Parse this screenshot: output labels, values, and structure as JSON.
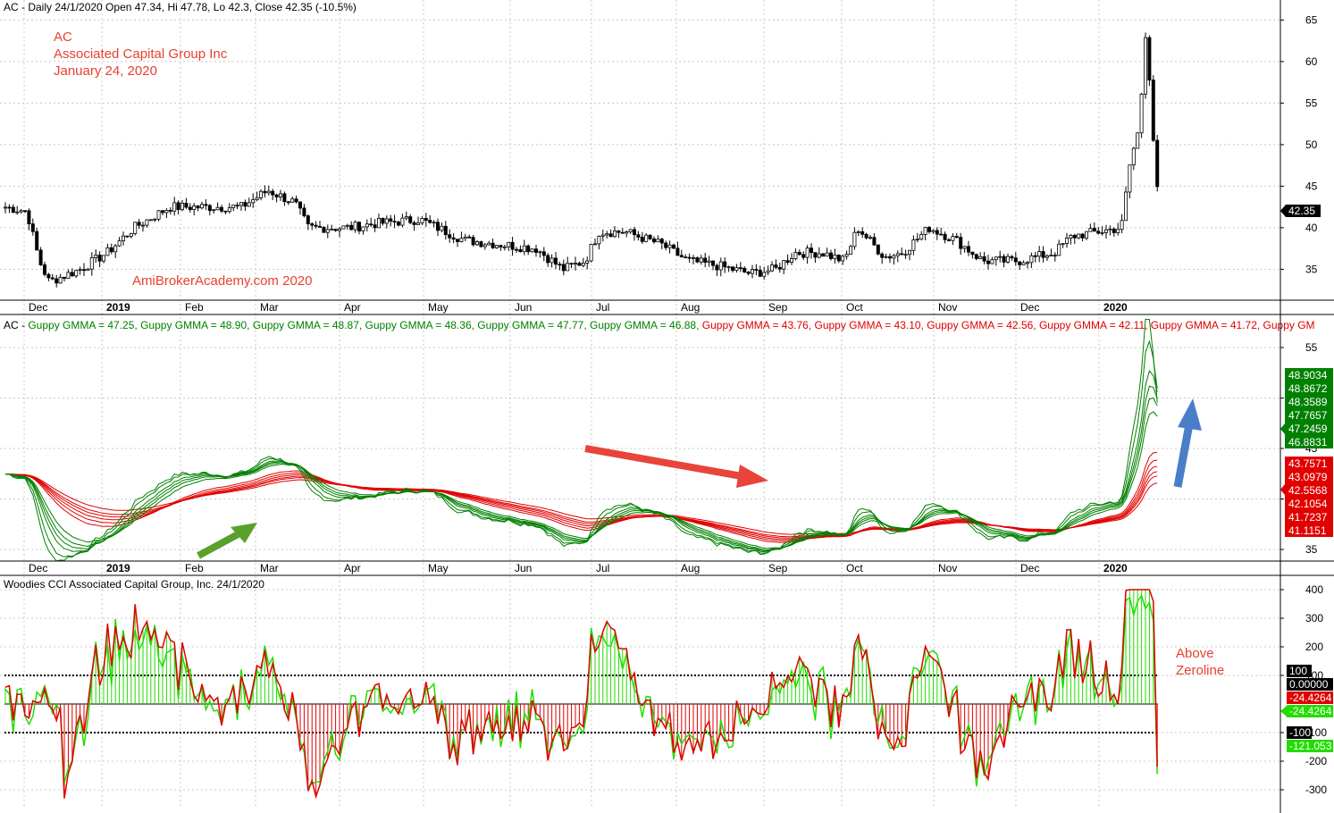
{
  "colors": {
    "background": "#ffffff",
    "grid": "#c8c8c8",
    "candle": "#000000",
    "gmma_short": "#008000",
    "gmma_long": "#e00000",
    "annot_red": "#e8402f",
    "cci_green": "#22dd00",
    "cci_red": "#e00000",
    "arrow_green": "#5aa02c",
    "arrow_red": "#e8443a",
    "arrow_blue": "#4a7ec8"
  },
  "price_panel": {
    "header": "AC - Daily 24/1/2020 Open 47.34, Hi 47.78, Lo 42.3, Close 42.35 (-10.5%)",
    "title_lines": [
      "AC",
      "Associated Capital Group Inc",
      "January 24, 2020"
    ],
    "watermark": "AmiBrokerAcademy.com   2020",
    "last_label": "42.35",
    "y_ticks": [
      "65",
      "60",
      "55",
      "50",
      "45",
      "40",
      "35"
    ]
  },
  "gmma_panel": {
    "header_prefix": "AC - ",
    "header_items": [
      {
        "text": "Guppy GMMA = 47.25,",
        "color": "green"
      },
      {
        "text": "Guppy GMMA = 48.90,",
        "color": "green"
      },
      {
        "text": "Guppy GMMA = 48.87,",
        "color": "green"
      },
      {
        "text": "Guppy GMMA = 48.36,",
        "color": "green"
      },
      {
        "text": "Guppy GMMA = 47.77,",
        "color": "green"
      },
      {
        "text": "Guppy GMMA = 46.88,",
        "color": "green"
      },
      {
        "text": "Guppy GMMA = 43.76,",
        "color": "red"
      },
      {
        "text": "Guppy GMMA = 43.10,",
        "color": "red"
      },
      {
        "text": "Guppy GMMA = 42.56,",
        "color": "red"
      },
      {
        "text": "Guppy GMMA = 42.11,",
        "color": "red"
      },
      {
        "text": "Guppy GMMA = 41.72,",
        "color": "red"
      },
      {
        "text": "Guppy GM",
        "color": "red"
      }
    ],
    "y_ticks": [
      "55",
      "50",
      "45",
      "40",
      "35"
    ],
    "green_labels": [
      "48.9034",
      "48.8672",
      "48.3589",
      "47.7657",
      "47.2459",
      "46.8831"
    ],
    "red_labels": [
      "43.7571",
      "43.0979",
      "42.5568",
      "42.1054",
      "41.7237",
      "41.1151"
    ]
  },
  "cci_panel": {
    "header": "Woodies CCI  Associated Capital Group, Inc. 24/1/2020",
    "annotation": [
      "Above",
      "Zeroline"
    ],
    "y_ticks": [
      "400",
      "300",
      "200",
      "100",
      "-100",
      "-200",
      "-300"
    ],
    "labels": {
      "upper": "100",
      "zero": "0.00000",
      "value_red": "-24.4264",
      "value_green": "-24.4264",
      "lower": "-100",
      "turbo": "-121.053"
    }
  },
  "x_axis": {
    "months": [
      "Dec",
      "2019",
      "Feb",
      "Mar",
      "Apr",
      "May",
      "Jun",
      "Jul",
      "Aug",
      "Sep",
      "Oct",
      "Nov",
      "Dec",
      "2020"
    ]
  },
  "chart_data": [
    {
      "type": "candlestick",
      "title": "AC - Daily 24/1/2020 Open 47.34, Hi 47.78, Lo 42.3, Close 42.35 (-10.5%)",
      "x_range": [
        "Nov 2018",
        "Jan 24, 2020"
      ],
      "ylim": [
        31,
        67
      ],
      "last": {
        "open": 47.34,
        "high": 47.78,
        "low": 42.3,
        "close": 42.35
      },
      "close_path_months": [
        "Nov",
        "Dec",
        "2019",
        "Feb",
        "Mar",
        "Apr",
        "May",
        "Jun",
        "Jul",
        "Aug",
        "Sep",
        "Oct",
        "Nov",
        "Dec",
        "2020"
      ],
      "close_approx": [
        42.5,
        34,
        37.5,
        42.5,
        44.5,
        40,
        41,
        37,
        39.5,
        36.5,
        35,
        37,
        38.5,
        36,
        38.5
      ]
    },
    {
      "type": "line",
      "title": "Guppy GMMA",
      "ylim": [
        32,
        58
      ],
      "short_values": [
        48.9034,
        48.8672,
        48.3589,
        47.7657,
        47.2459,
        46.8831
      ],
      "long_values": [
        43.7571,
        43.0979,
        42.5568,
        42.1054,
        41.7237,
        41.1151
      ]
    },
    {
      "type": "line",
      "title": "Woodies CCI",
      "ylim": [
        -370,
        420
      ],
      "levels": [
        100,
        0,
        -100
      ],
      "last_cci": -24.4264,
      "last_turbo": -121.053
    }
  ]
}
